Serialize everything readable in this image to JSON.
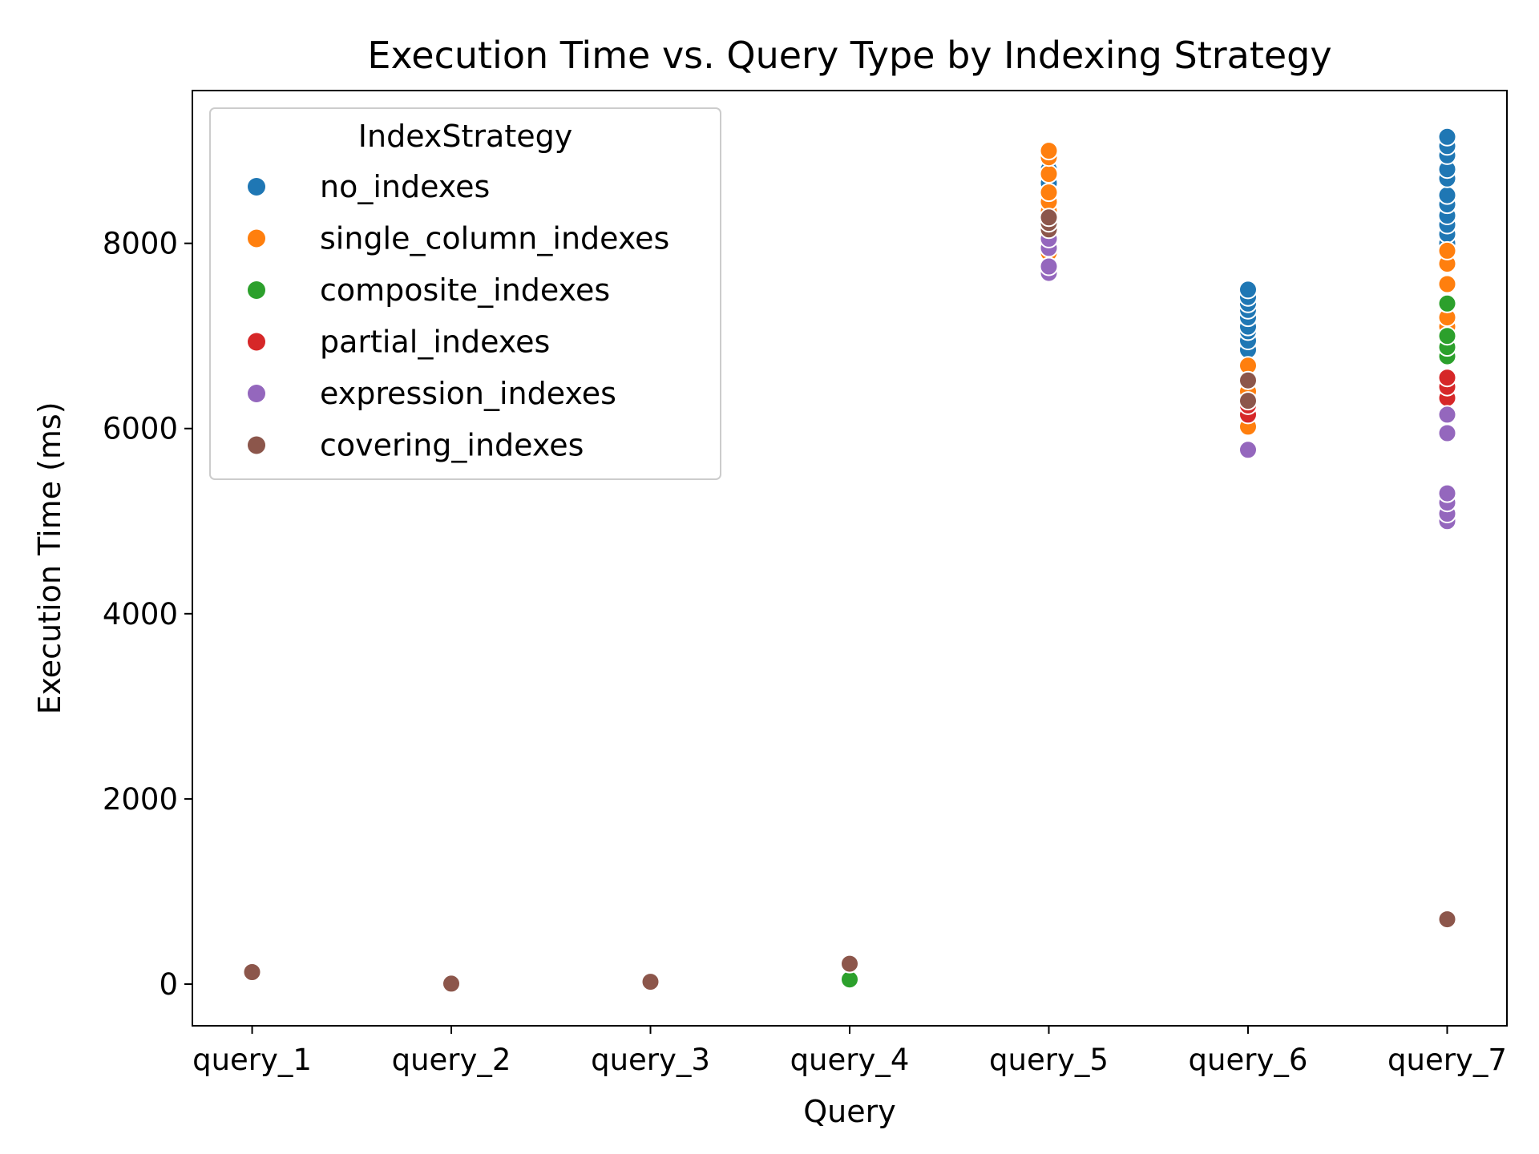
{
  "chart_data": {
    "type": "scatter",
    "title": "Execution Time vs. Query Type by Indexing Strategy",
    "xlabel": "Query",
    "ylabel": "Execution Time (ms)",
    "categories": [
      "query_1",
      "query_2",
      "query_3",
      "query_4",
      "query_5",
      "query_6",
      "query_7"
    ],
    "ylim": [
      -450,
      9650
    ],
    "yticks": [
      0,
      2000,
      4000,
      6000,
      8000
    ],
    "grid": false,
    "legend": {
      "title": "IndexStrategy",
      "placement": "top-left"
    },
    "series": [
      {
        "name": "no_indexes",
        "color": "#1f77b4",
        "points": [
          [
            "query_5",
            8400
          ],
          [
            "query_5",
            8550
          ],
          [
            "query_5",
            8650
          ],
          [
            "query_5",
            8800
          ],
          [
            "query_6",
            6850
          ],
          [
            "query_6",
            6950
          ],
          [
            "query_6",
            7050
          ],
          [
            "query_6",
            7100
          ],
          [
            "query_6",
            7200
          ],
          [
            "query_6",
            7280
          ],
          [
            "query_6",
            7350
          ],
          [
            "query_6",
            7420
          ],
          [
            "query_6",
            7500
          ],
          [
            "query_7",
            7900
          ],
          [
            "query_7",
            8000
          ],
          [
            "query_7",
            8100
          ],
          [
            "query_7",
            8200
          ],
          [
            "query_7",
            8300
          ],
          [
            "query_7",
            8420
          ],
          [
            "query_7",
            8520
          ],
          [
            "query_7",
            8700
          ],
          [
            "query_7",
            8800
          ],
          [
            "query_7",
            8950
          ],
          [
            "query_7",
            9050
          ],
          [
            "query_7",
            9150
          ]
        ]
      },
      {
        "name": "single_column_indexes",
        "color": "#ff7f0e",
        "points": [
          [
            "query_5",
            7900
          ],
          [
            "query_5",
            8050
          ],
          [
            "query_5",
            8150
          ],
          [
            "query_5",
            8250
          ],
          [
            "query_5",
            8350
          ],
          [
            "query_5",
            8450
          ],
          [
            "query_5",
            8550
          ],
          [
            "query_5",
            8750
          ],
          [
            "query_5",
            8930
          ],
          [
            "query_5",
            9000
          ],
          [
            "query_6",
            6020
          ],
          [
            "query_6",
            6180
          ],
          [
            "query_6",
            6400
          ],
          [
            "query_6",
            6520
          ],
          [
            "query_6",
            6680
          ],
          [
            "query_7",
            7000
          ],
          [
            "query_7",
            7100
          ],
          [
            "query_7",
            7200
          ],
          [
            "query_7",
            7350
          ],
          [
            "query_7",
            7560
          ],
          [
            "query_7",
            7780
          ],
          [
            "query_7",
            7920
          ]
        ]
      },
      {
        "name": "composite_indexes",
        "color": "#2ca02c",
        "points": [
          [
            "query_4",
            50
          ],
          [
            "query_7",
            6780
          ],
          [
            "query_7",
            6880
          ],
          [
            "query_7",
            7000
          ],
          [
            "query_7",
            7350
          ]
        ]
      },
      {
        "name": "partial_indexes",
        "color": "#d62728",
        "points": [
          [
            "query_5",
            8200
          ],
          [
            "query_6",
            6150
          ],
          [
            "query_6",
            6250
          ],
          [
            "query_7",
            5950
          ],
          [
            "query_7",
            6330
          ],
          [
            "query_7",
            6450
          ],
          [
            "query_7",
            6550
          ]
        ]
      },
      {
        "name": "expression_indexes",
        "color": "#9467bd",
        "points": [
          [
            "query_5",
            7680
          ],
          [
            "query_5",
            7750
          ],
          [
            "query_5",
            7950
          ],
          [
            "query_5",
            8050
          ],
          [
            "query_6",
            5770
          ],
          [
            "query_7",
            5000
          ],
          [
            "query_7",
            5080
          ],
          [
            "query_7",
            5200
          ],
          [
            "query_7",
            5300
          ],
          [
            "query_7",
            5950
          ],
          [
            "query_7",
            6150
          ]
        ]
      },
      {
        "name": "covering_indexes",
        "color": "#8c564b",
        "points": [
          [
            "query_1",
            130
          ],
          [
            "query_2",
            5
          ],
          [
            "query_3",
            25
          ],
          [
            "query_4",
            220
          ],
          [
            "query_5",
            8150
          ],
          [
            "query_5",
            8220
          ],
          [
            "query_5",
            8280
          ],
          [
            "query_6",
            6300
          ],
          [
            "query_6",
            6520
          ],
          [
            "query_7",
            700
          ]
        ]
      }
    ]
  }
}
